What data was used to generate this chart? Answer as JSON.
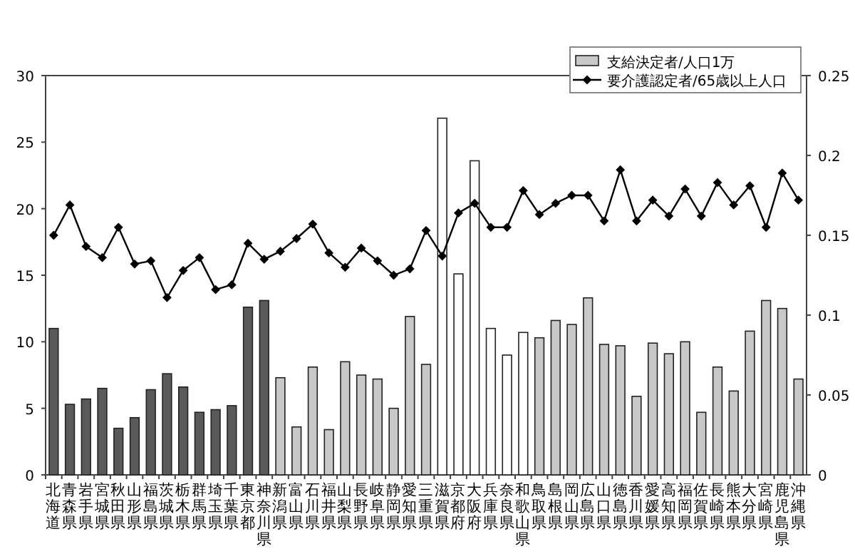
{
  "chart_data": {
    "type": "bar",
    "categories": [
      "北海道",
      "青森県",
      "岩手県",
      "宮城県",
      "秋田県",
      "山形県",
      "福島県",
      "茨城県",
      "栃木県",
      "群馬県",
      "埼玉県",
      "千葉県",
      "東京都",
      "神奈川県",
      "新潟県",
      "富山県",
      "石川県",
      "福井県",
      "山梨県",
      "長野県",
      "岐阜県",
      "静岡県",
      "愛知県",
      "三重県",
      "滋賀県",
      "京都府",
      "大阪府",
      "兵庫県",
      "奈良県",
      "和歌山県",
      "鳥取県",
      "島根県",
      "岡山県",
      "広島県",
      "山口県",
      "徳島県",
      "香川県",
      "愛媛県",
      "高知県",
      "福岡県",
      "佐賀県",
      "長崎県",
      "熊本県",
      "大分県",
      "宮崎県",
      "鹿児島県",
      "沖縄県"
    ],
    "series": [
      {
        "name": "支給決定者/人口1万",
        "color": "#c8c8c8",
        "colors": [
          "#5a5a5a",
          "#5a5a5a",
          "#5a5a5a",
          "#5a5a5a",
          "#5a5a5a",
          "#5a5a5a",
          "#5a5a5a",
          "#5a5a5a",
          "#5a5a5a",
          "#5a5a5a",
          "#5a5a5a",
          "#5a5a5a",
          "#5a5a5a",
          "#5a5a5a",
          "#c8c8c8",
          "#c8c8c8",
          "#c8c8c8",
          "#c8c8c8",
          "#c8c8c8",
          "#c8c8c8",
          "#c8c8c8",
          "#c8c8c8",
          "#c8c8c8",
          "#c8c8c8",
          "#ffffff",
          "#ffffff",
          "#ffffff",
          "#ffffff",
          "#ffffff",
          "#ffffff",
          "#c8c8c8",
          "#c8c8c8",
          "#c8c8c8",
          "#c8c8c8",
          "#c8c8c8",
          "#c8c8c8",
          "#c8c8c8",
          "#c8c8c8",
          "#c8c8c8",
          "#c8c8c8",
          "#c8c8c8",
          "#c8c8c8",
          "#c8c8c8",
          "#c8c8c8",
          "#c8c8c8",
          "#c8c8c8",
          "#c8c8c8"
        ],
        "values": [
          11.0,
          5.3,
          5.7,
          6.5,
          3.5,
          4.3,
          6.4,
          7.6,
          6.6,
          4.7,
          4.9,
          5.2,
          12.6,
          13.1,
          7.3,
          3.6,
          8.1,
          3.4,
          8.5,
          7.5,
          7.2,
          5.0,
          11.9,
          8.3,
          26.8,
          15.1,
          23.6,
          11.0,
          9.0,
          10.7,
          10.3,
          11.6,
          11.3,
          13.3,
          9.8,
          9.7,
          5.9,
          9.9,
          9.1,
          10.0,
          4.7,
          8.1,
          6.3,
          10.8,
          13.1,
          12.5,
          7.2
        ]
      },
      {
        "name": "要介護認定者/65歳以上人口",
        "type": "line",
        "axis": "y2",
        "color": "#000000",
        "marker": "diamond",
        "values": [
          0.15,
          0.169,
          0.143,
          0.136,
          0.155,
          0.132,
          0.134,
          0.111,
          0.128,
          0.136,
          0.116,
          0.119,
          0.145,
          0.135,
          0.14,
          0.148,
          0.157,
          0.139,
          0.13,
          0.142,
          0.134,
          0.125,
          0.129,
          0.153,
          0.137,
          0.164,
          0.17,
          0.155,
          0.155,
          0.178,
          0.163,
          0.17,
          0.175,
          0.175,
          0.159,
          0.191,
          0.159,
          0.172,
          0.162,
          0.179,
          0.162,
          0.183,
          0.169,
          0.181,
          0.155,
          0.189,
          0.172
        ]
      }
    ],
    "ylim": [
      0,
      30
    ],
    "yticks": [
      0,
      5,
      10,
      15,
      20,
      25,
      30
    ],
    "y2lim": [
      0,
      0.25
    ],
    "y2ticks": [
      0,
      0.05,
      0.1,
      0.15,
      0.2,
      0.25
    ],
    "legend": "top right",
    "grid": false
  }
}
